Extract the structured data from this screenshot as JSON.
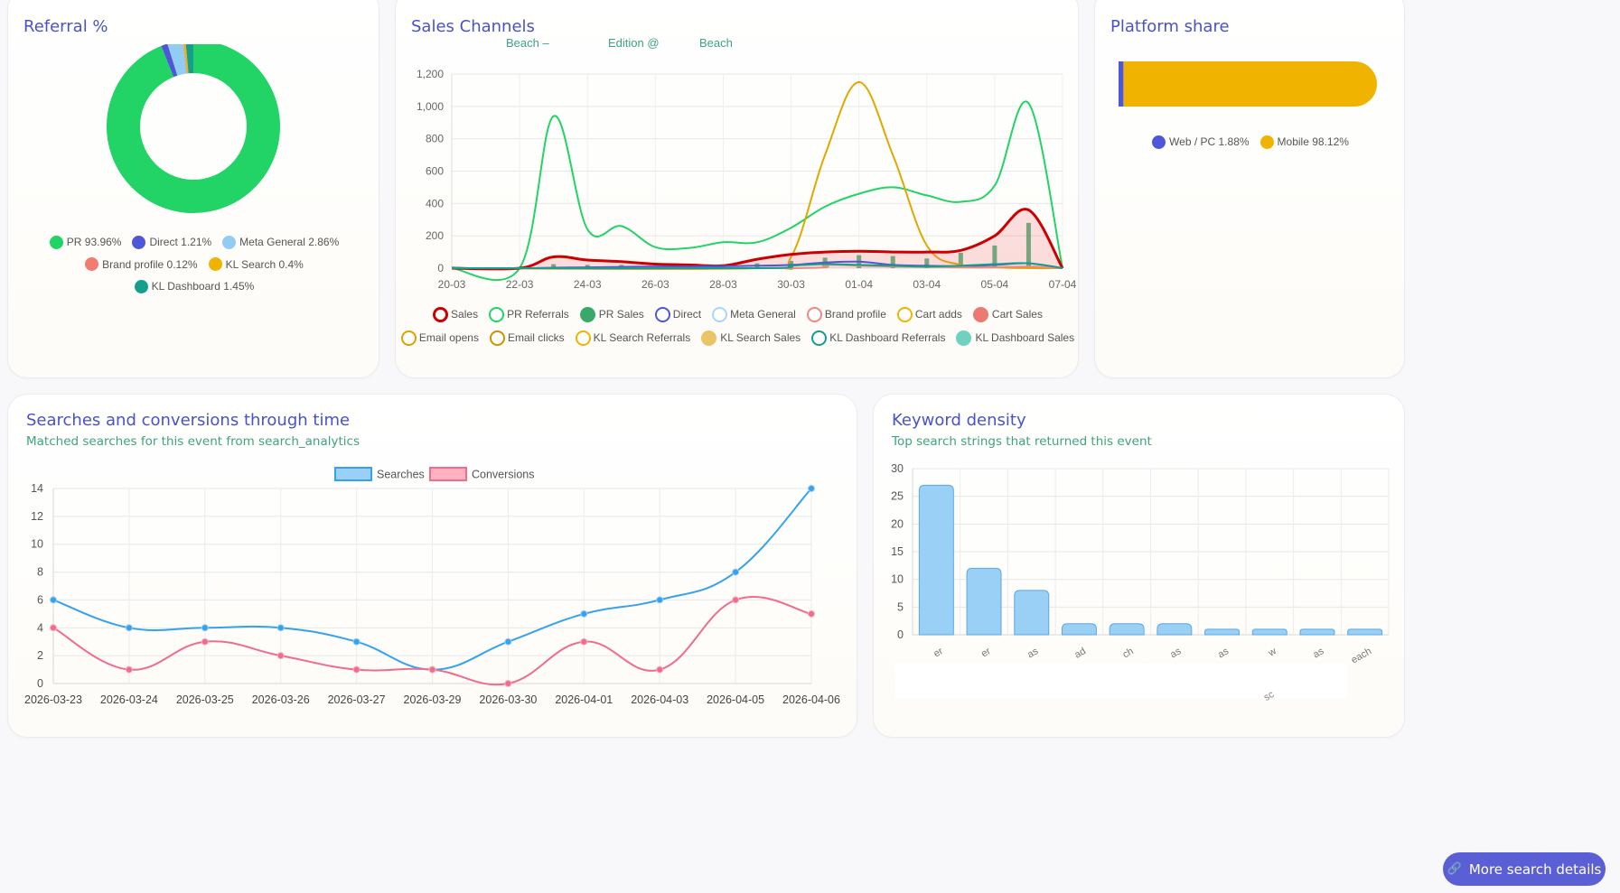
{
  "referral": {
    "title": "Referral %",
    "legend": [
      {
        "label": "PR 93.96%",
        "color": "#22d366"
      },
      {
        "label": "Direct 1.21%",
        "color": "#4e57d8"
      },
      {
        "label": "Meta General 2.86%",
        "color": "#93ccf2"
      },
      {
        "label": "Brand profile 0.12%",
        "color": "#f07c72"
      },
      {
        "label": "KL Search 0.4%",
        "color": "#f0b400"
      },
      {
        "label": "KL Dashboard 1.45%",
        "color": "#159e8c"
      }
    ]
  },
  "sales": {
    "title": "Sales Channels",
    "subtitle_parts": [
      "Beach –",
      "Edition @",
      "Beach"
    ],
    "legend": [
      {
        "label": "Sales",
        "color": "#cc0000",
        "style": "ring-bold"
      },
      {
        "label": "PR Referrals",
        "color": "#22d366",
        "style": "ring"
      },
      {
        "label": "PR Sales",
        "color": "#3aa86a",
        "style": "dot"
      },
      {
        "label": "Direct",
        "color": "#4e57d8",
        "style": "ring"
      },
      {
        "label": "Meta General",
        "color": "#a9d6f5",
        "style": "ring"
      },
      {
        "label": "Brand profile",
        "color": "#f08a80",
        "style": "ring"
      },
      {
        "label": "Cart adds",
        "color": "#f0b400",
        "style": "ring"
      },
      {
        "label": "Cart Sales",
        "color": "#ea7a72",
        "style": "dot"
      },
      {
        "label": "Email opens",
        "color": "#d9a300",
        "style": "ring"
      },
      {
        "label": "Email clicks",
        "color": "#c99400",
        "style": "ring"
      },
      {
        "label": "KL Search Referrals",
        "color": "#f0b400",
        "style": "ring"
      },
      {
        "label": "KL Search Sales",
        "color": "#ecc468",
        "style": "dot"
      },
      {
        "label": "KL Dashboard Referrals",
        "color": "#149e8c",
        "style": "ring"
      },
      {
        "label": "KL Dashboard Sales",
        "color": "#6fd1bf",
        "style": "dot"
      }
    ]
  },
  "platform": {
    "title": "Platform share",
    "legend": [
      {
        "label": "Web / PC 1.88%",
        "color": "#4e57d8"
      },
      {
        "label": "Mobile 98.12%",
        "color": "#f0b400"
      }
    ]
  },
  "searches": {
    "title": "Searches and conversions through time",
    "subtitle": "Matched searches for this event from search_analytics"
  },
  "keywords": {
    "title": "Keyword density",
    "subtitle": "Top search strings that returned this event",
    "stray_label": "sc"
  },
  "button": {
    "label": "More search details"
  },
  "chart_data": [
    {
      "id": "referral",
      "type": "pie",
      "title": "Referral %",
      "labels": [
        "PR",
        "Direct",
        "Meta General",
        "Brand profile",
        "KL Search",
        "KL Dashboard"
      ],
      "values": [
        93.96,
        1.21,
        2.86,
        0.12,
        0.4,
        1.45
      ],
      "colors": [
        "#22d366",
        "#4e57d8",
        "#93ccf2",
        "#f07c72",
        "#f0b400",
        "#159e8c"
      ]
    },
    {
      "id": "sales",
      "type": "line",
      "title": "Sales Channels",
      "x_ticks": [
        "20-03",
        "22-03",
        "24-03",
        "26-03",
        "28-03",
        "30-03",
        "01-04",
        "03-04",
        "05-04",
        "07-04"
      ],
      "ylim": [
        0,
        1200
      ],
      "y_ticks": [
        0,
        200,
        400,
        600,
        800,
        1000,
        1200
      ],
      "y_tick_labels": [
        "0",
        "200",
        "400",
        "600",
        "800",
        "1,000",
        "1,200"
      ],
      "grid": true,
      "series": [
        {
          "name": "PR Referrals",
          "color": "#22d366",
          "points": [
            [
              0,
              0
            ],
            [
              2,
              0
            ],
            [
              3,
              940
            ],
            [
              4,
              240
            ],
            [
              5,
              260
            ],
            [
              6,
              130
            ],
            [
              7,
              125
            ],
            [
              8,
              160
            ],
            [
              9,
              160
            ],
            [
              10,
              250
            ],
            [
              11,
              380
            ],
            [
              12,
              460
            ],
            [
              13,
              500
            ],
            [
              14,
              450
            ],
            [
              15,
              410
            ],
            [
              16,
              510
            ],
            [
              17,
              1020
            ],
            [
              18,
              0
            ]
          ]
        },
        {
          "name": "Cart adds",
          "color": "#e0a800",
          "points": [
            [
              0,
              0
            ],
            [
              9,
              0
            ],
            [
              10,
              70
            ],
            [
              11,
              700
            ],
            [
              12,
              1150
            ],
            [
              13,
              700
            ],
            [
              14,
              140
            ],
            [
              15,
              20
            ],
            [
              16,
              5
            ],
            [
              17,
              0
            ],
            [
              18,
              0
            ]
          ]
        },
        {
          "name": "Sales",
          "color": "#cc0000",
          "fill": "rgba(235,110,110,0.22)",
          "points": [
            [
              0,
              0
            ],
            [
              2,
              0
            ],
            [
              3,
              70
            ],
            [
              4,
              50
            ],
            [
              5,
              40
            ],
            [
              6,
              25
            ],
            [
              7,
              20
            ],
            [
              8,
              15
            ],
            [
              9,
              55
            ],
            [
              10,
              85
            ],
            [
              11,
              100
            ],
            [
              12,
              105
            ],
            [
              13,
              100
            ],
            [
              14,
              100
            ],
            [
              15,
              110
            ],
            [
              16,
              200
            ],
            [
              17,
              360
            ],
            [
              18,
              0
            ]
          ]
        },
        {
          "name": "Direct",
          "color": "#4e57d8",
          "points": [
            [
              0,
              0
            ],
            [
              2,
              0
            ],
            [
              3,
              3
            ],
            [
              4,
              5
            ],
            [
              5,
              8
            ],
            [
              6,
              10
            ],
            [
              7,
              10
            ],
            [
              8,
              12
            ],
            [
              9,
              15
            ],
            [
              10,
              20
            ],
            [
              11,
              35
            ],
            [
              12,
              40
            ],
            [
              13,
              20
            ],
            [
              14,
              15
            ],
            [
              15,
              12
            ],
            [
              16,
              20
            ],
            [
              17,
              30
            ],
            [
              18,
              0
            ]
          ]
        },
        {
          "name": "Brand profile",
          "color": "#f08a80",
          "points": [
            [
              0,
              0
            ],
            [
              10,
              0
            ],
            [
              11,
              20
            ],
            [
              12,
              15
            ],
            [
              13,
              10
            ],
            [
              14,
              8
            ],
            [
              15,
              5
            ],
            [
              16,
              5
            ],
            [
              17,
              10
            ],
            [
              18,
              0
            ]
          ]
        },
        {
          "name": "KL Dashboard Referrals",
          "color": "#149e8c",
          "points": [
            [
              0,
              0
            ],
            [
              9,
              0
            ],
            [
              10,
              15
            ],
            [
              11,
              25
            ],
            [
              12,
              20
            ],
            [
              13,
              15
            ],
            [
              14,
              10
            ],
            [
              15,
              15
            ],
            [
              16,
              25
            ],
            [
              17,
              30
            ],
            [
              18,
              0
            ]
          ]
        }
      ],
      "bars": {
        "name": "PR Sales",
        "color": "#3aa86a",
        "x": [
          3,
          4,
          5,
          6,
          7,
          8,
          9,
          10,
          11,
          12,
          13,
          14,
          15,
          16,
          17
        ],
        "values": [
          25,
          20,
          20,
          10,
          10,
          15,
          30,
          45,
          65,
          80,
          75,
          60,
          95,
          140,
          280
        ]
      }
    },
    {
      "id": "platform",
      "type": "bar",
      "title": "Platform share",
      "labels": [
        "Web / PC",
        "Mobile"
      ],
      "values": [
        1.88,
        98.12
      ],
      "colors": [
        "#4e57d8",
        "#f0b400"
      ]
    },
    {
      "id": "searches",
      "type": "line",
      "title": "Searches and conversions through time",
      "categories": [
        "2026-03-23",
        "2026-03-24",
        "2026-03-25",
        "2026-03-26",
        "2026-03-27",
        "2026-03-29",
        "2026-03-30",
        "2026-04-01",
        "2026-04-03",
        "2026-04-05",
        "2026-04-06"
      ],
      "ylim": [
        0,
        14
      ],
      "y_ticks": [
        0,
        2,
        4,
        6,
        8,
        10,
        12,
        14
      ],
      "legend_position": "top",
      "grid": true,
      "series": [
        {
          "name": "Searches",
          "color": "#36a2eb",
          "fill": "#9ad0f5",
          "values": [
            6,
            4,
            4,
            4,
            3,
            1,
            3,
            5,
            6,
            8,
            14
          ]
        },
        {
          "name": "Conversions",
          "color": "#f06c8f",
          "fill": "#ffb1c1",
          "values": [
            4,
            1,
            3,
            2,
            1,
            1,
            0,
            3,
            1,
            6,
            5
          ]
        }
      ]
    },
    {
      "id": "keywords",
      "type": "bar",
      "title": "Keyword density",
      "ylim": [
        0,
        30
      ],
      "y_ticks": [
        0,
        5,
        10,
        15,
        20,
        25,
        30
      ],
      "grid": true,
      "categories": [
        "er",
        "er",
        "as",
        "ad",
        "ch",
        "as",
        "as",
        "w",
        "as",
        "each"
      ],
      "values": [
        27,
        12,
        8,
        2,
        2,
        2,
        1,
        1,
        1,
        1
      ],
      "color": "#9ad0f5",
      "border": "#5aa8e6"
    }
  ]
}
